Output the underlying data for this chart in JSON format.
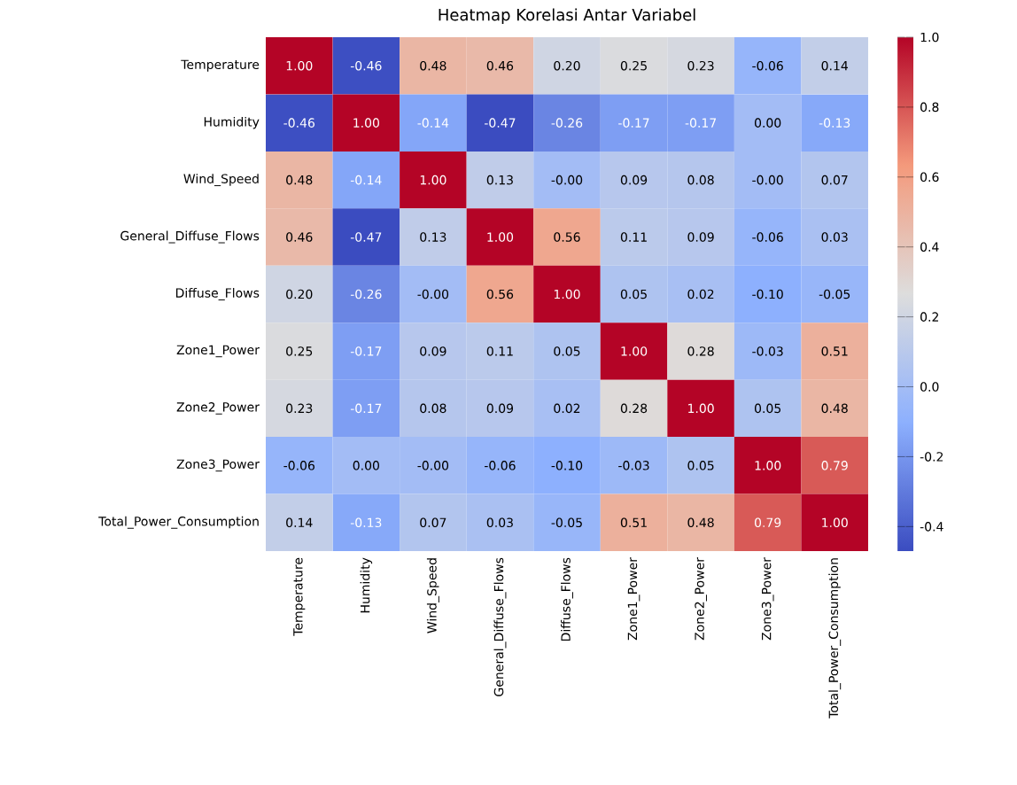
{
  "chart_data": {
    "type": "heatmap",
    "title": "Heatmap Korelasi Antar Variabel",
    "categories": [
      "Temperature",
      "Humidity",
      "Wind_Speed",
      "General_Diffuse_Flows",
      "Diffuse_Flows",
      "Zone1_Power",
      "Zone2_Power",
      "Zone3_Power",
      "Total_Power_Consumption"
    ],
    "y_categories": [
      "Temperature",
      "Humidity",
      "Wind_Speed",
      "General_Diffuse_Flows",
      "Diffuse_Flows",
      "Zone1_Power",
      "Zone2_Power",
      "Zone3_Power",
      "Total_Power_Consumption"
    ],
    "cells": [
      [
        1.0,
        -0.46,
        0.48,
        0.46,
        0.2,
        0.25,
        0.23,
        -0.06,
        0.14
      ],
      [
        -0.46,
        1.0,
        -0.14,
        -0.47,
        -0.26,
        -0.17,
        -0.17,
        0.0,
        -0.13
      ],
      [
        0.48,
        -0.14,
        1.0,
        0.13,
        -0.0,
        0.09,
        0.08,
        -0.0,
        0.07
      ],
      [
        0.46,
        -0.47,
        0.13,
        1.0,
        0.56,
        0.11,
        0.09,
        -0.06,
        0.03
      ],
      [
        0.2,
        -0.26,
        -0.0,
        0.56,
        1.0,
        0.05,
        0.02,
        -0.1,
        -0.05
      ],
      [
        0.25,
        -0.17,
        0.09,
        0.11,
        0.05,
        1.0,
        0.28,
        -0.03,
        0.51
      ],
      [
        0.23,
        -0.17,
        0.08,
        0.09,
        0.02,
        0.28,
        1.0,
        0.05,
        0.48
      ],
      [
        -0.06,
        0.0,
        -0.0,
        -0.06,
        -0.1,
        -0.03,
        0.05,
        1.0,
        0.79
      ],
      [
        0.14,
        -0.13,
        0.07,
        0.03,
        -0.05,
        0.51,
        0.48,
        0.79,
        1.0
      ]
    ],
    "cell_labels": [
      [
        "1.00",
        "-0.46",
        "0.48",
        "0.46",
        "0.20",
        "0.25",
        "0.23",
        "-0.06",
        "0.14"
      ],
      [
        "-0.46",
        "1.00",
        "-0.14",
        "-0.47",
        "-0.26",
        "-0.17",
        "-0.17",
        "0.00",
        "-0.13"
      ],
      [
        "0.48",
        "-0.14",
        "1.00",
        "0.13",
        "-0.00",
        "0.09",
        "0.08",
        "-0.00",
        "0.07"
      ],
      [
        "0.46",
        "-0.47",
        "0.13",
        "1.00",
        "0.56",
        "0.11",
        "0.09",
        "-0.06",
        "0.03"
      ],
      [
        "0.20",
        "-0.26",
        "-0.00",
        "0.56",
        "1.00",
        "0.05",
        "0.02",
        "-0.10",
        "-0.05"
      ],
      [
        "0.25",
        "-0.17",
        "0.09",
        "0.11",
        "0.05",
        "1.00",
        "0.28",
        "-0.03",
        "0.51"
      ],
      [
        "0.23",
        "-0.17",
        "0.08",
        "0.09",
        "0.02",
        "0.28",
        "1.00",
        "0.05",
        "0.48"
      ],
      [
        "-0.06",
        "0.00",
        "-0.00",
        "-0.06",
        "-0.10",
        "-0.03",
        "0.05",
        "1.00",
        "0.79"
      ],
      [
        "0.14",
        "-0.13",
        "0.07",
        "0.03",
        "-0.05",
        "0.51",
        "0.48",
        "0.79",
        "1.00"
      ]
    ],
    "clim": [
      -0.47,
      1.0
    ],
    "cticks": [
      {
        "value": -0.4,
        "label": "-0.4"
      },
      {
        "value": -0.2,
        "label": "-0.2"
      },
      {
        "value": 0,
        "label": "0.0"
      },
      {
        "value": 0.2,
        "label": "0.2"
      },
      {
        "value": 0.4,
        "label": "0.4"
      },
      {
        "value": 0.6,
        "label": "0.6"
      },
      {
        "value": 0.8,
        "label": "0.8"
      },
      {
        "value": 1,
        "label": "1.0"
      }
    ]
  }
}
